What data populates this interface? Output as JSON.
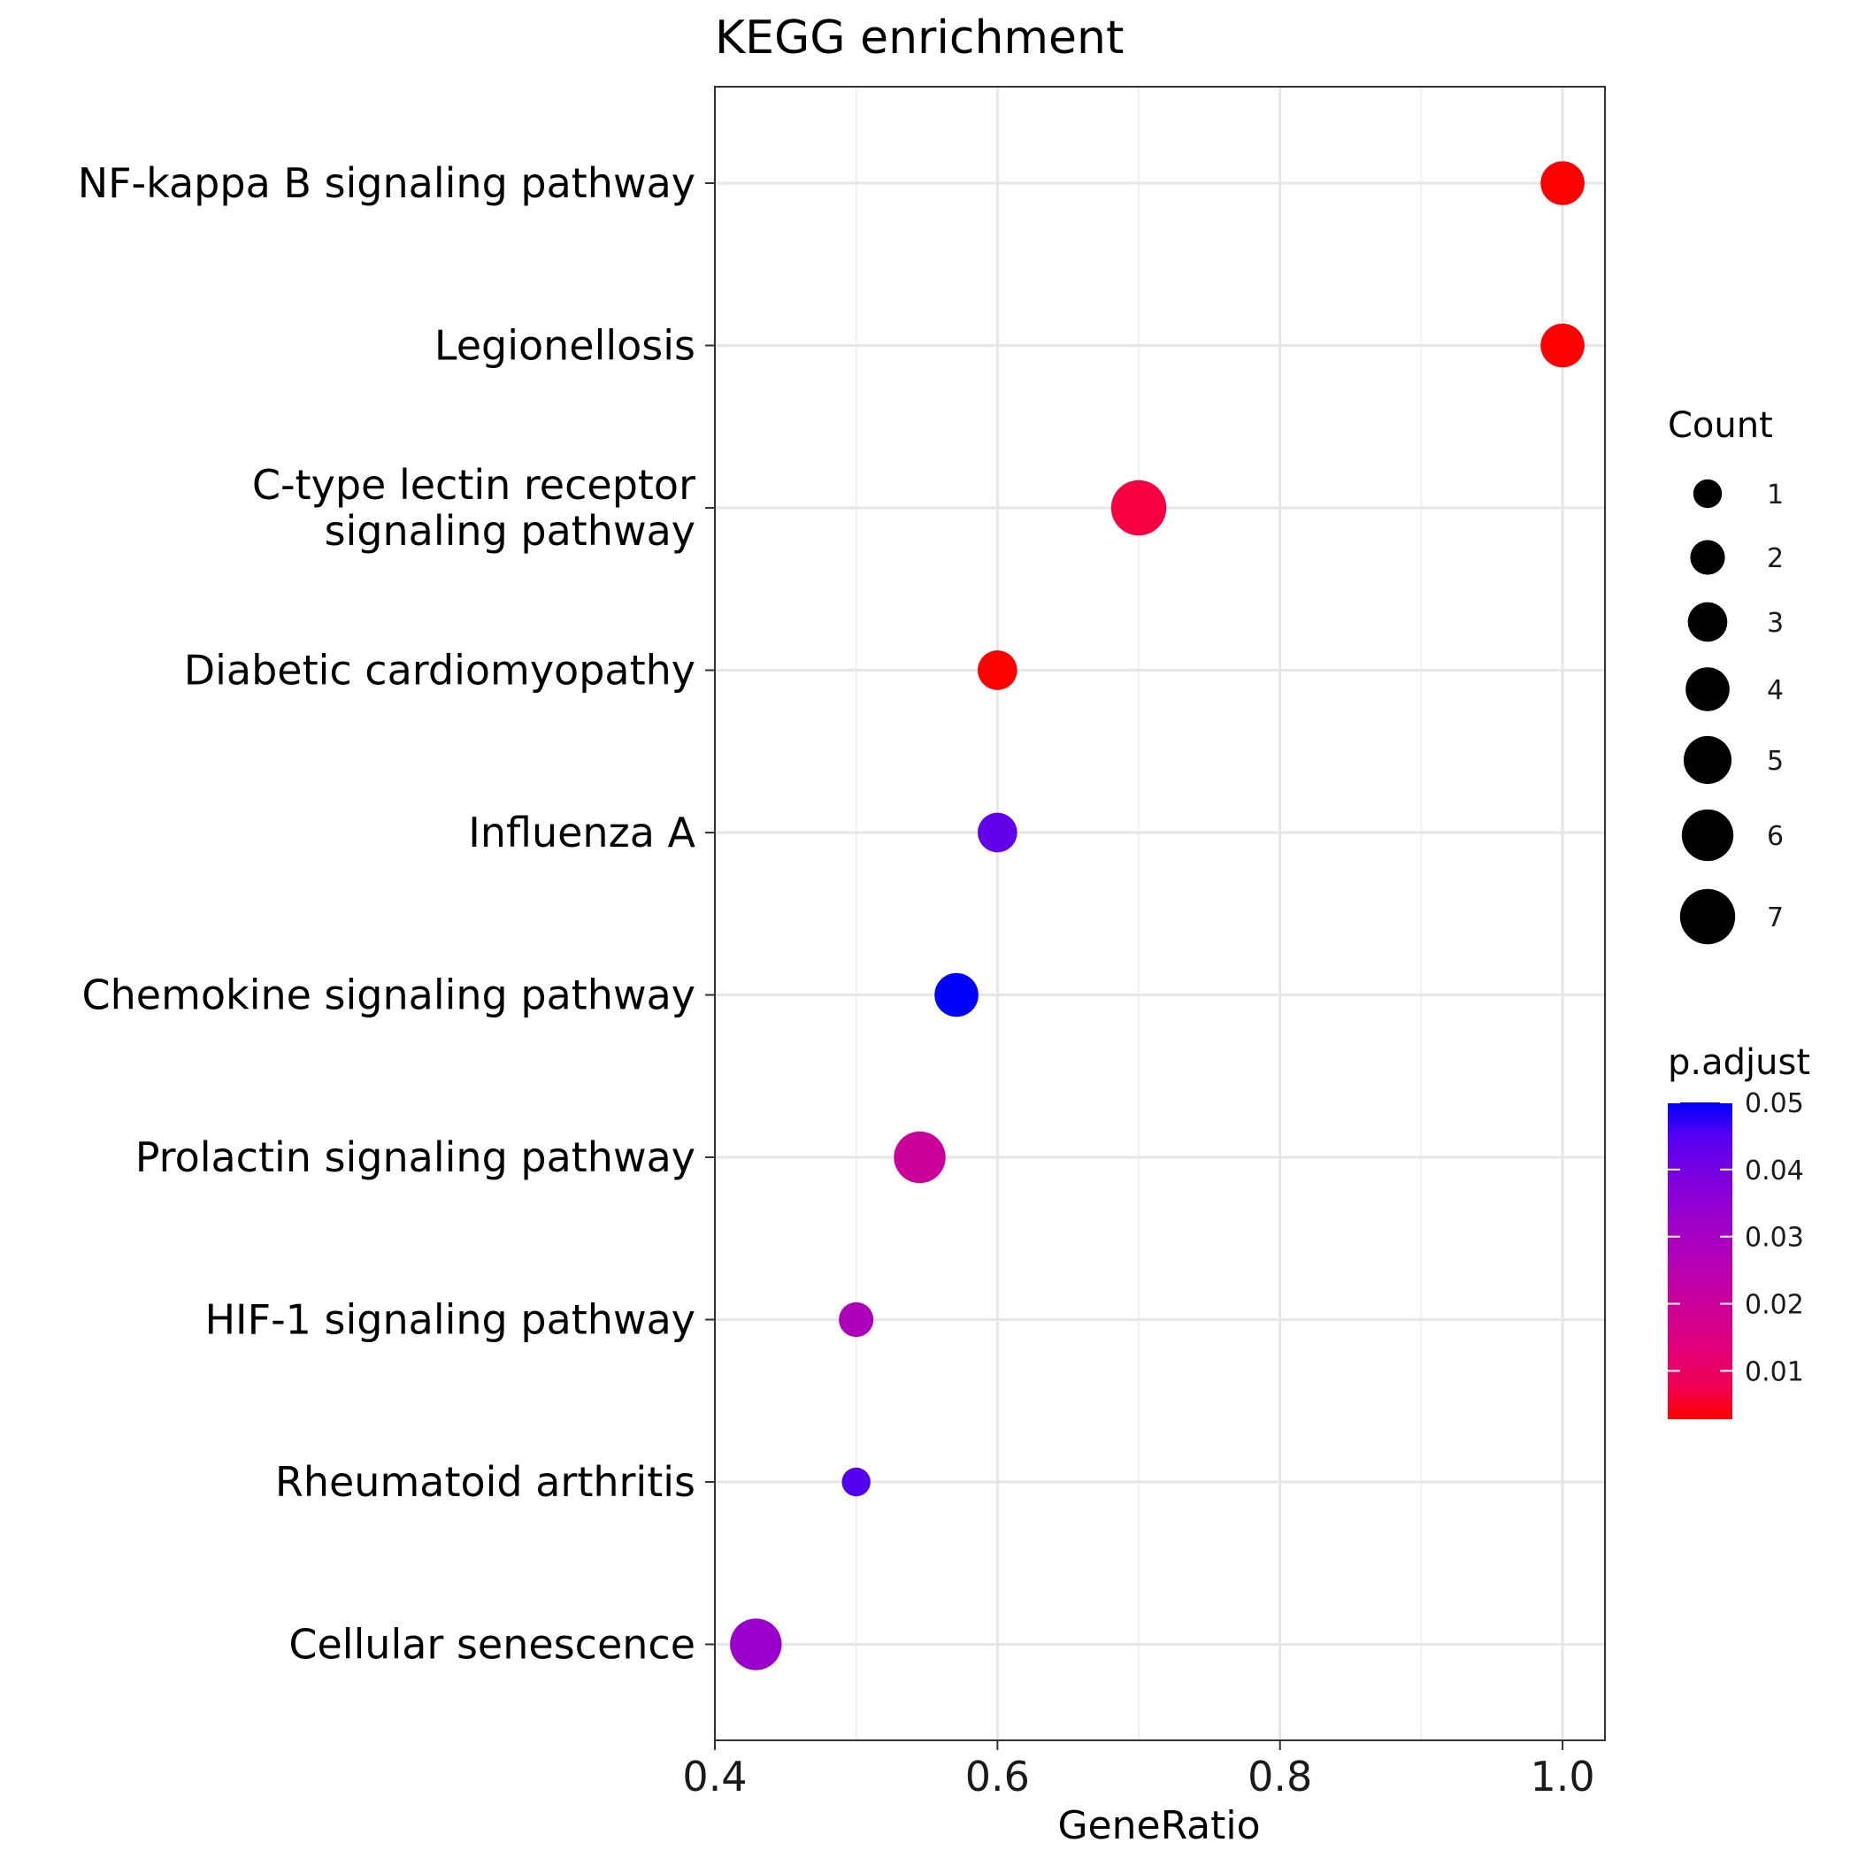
{
  "chart_data": {
    "type": "scatter",
    "title": "KEGG enrichment",
    "xlabel": "GeneRatio",
    "ylabel": "",
    "xlim": [
      0.4,
      1.03
    ],
    "x_ticks": [
      0.4,
      0.6,
      0.8,
      1.0
    ],
    "x_tick_labels": [
      "0.4",
      "0.6",
      "0.8",
      "1.0"
    ],
    "grid": true,
    "points": [
      {
        "label": "NF-kappa B signaling pathway",
        "label_lines": [
          "NF-kappa B signaling pathway"
        ],
        "gene_ratio": 1.0,
        "count": 4,
        "p_adjust": 0.001
      },
      {
        "label": "Legionellosis",
        "label_lines": [
          "Legionellosis"
        ],
        "gene_ratio": 1.0,
        "count": 4,
        "p_adjust": 0.001
      },
      {
        "label": "C-type lectin receptor signaling pathway",
        "label_lines": [
          "C-type lectin receptor",
          "signaling pathway"
        ],
        "gene_ratio": 0.7,
        "count": 7,
        "p_adjust": 0.006
      },
      {
        "label": "Diabetic cardiomyopathy",
        "label_lines": [
          "Diabetic cardiomyopathy"
        ],
        "gene_ratio": 0.6,
        "count": 3,
        "p_adjust": 0.001
      },
      {
        "label": "Influenza A",
        "label_lines": [
          "Influenza A"
        ],
        "gene_ratio": 0.6,
        "count": 3,
        "p_adjust": 0.043
      },
      {
        "label": "Chemokine signaling pathway",
        "label_lines": [
          "Chemokine signaling pathway"
        ],
        "gene_ratio": 0.571,
        "count": 4,
        "p_adjust": 0.05
      },
      {
        "label": "Prolactin signaling pathway",
        "label_lines": [
          "Prolactin signaling pathway"
        ],
        "gene_ratio": 0.545,
        "count": 6,
        "p_adjust": 0.02
      },
      {
        "label": "HIF-1 signaling pathway",
        "label_lines": [
          "HIF-1 signaling pathway"
        ],
        "gene_ratio": 0.5,
        "count": 2,
        "p_adjust": 0.028
      },
      {
        "label": "Rheumatoid arthritis",
        "label_lines": [
          "Rheumatoid arthritis"
        ],
        "gene_ratio": 0.5,
        "count": 1,
        "p_adjust": 0.045
      },
      {
        "label": "Cellular senescence",
        "label_lines": [
          "Cellular senescence"
        ],
        "gene_ratio": 0.429,
        "count": 6,
        "p_adjust": 0.033
      }
    ],
    "legend_size": {
      "title": "Count",
      "values": [
        1,
        2,
        3,
        4,
        5,
        6,
        7
      ],
      "labels": [
        "1",
        "2",
        "3",
        "4",
        "5",
        "6",
        "7"
      ]
    },
    "legend_color": {
      "title": "p.adjust",
      "range": [
        0.0028,
        0.05
      ],
      "ticks": [
        0.05,
        0.04,
        0.03,
        0.02,
        0.01
      ],
      "tick_labels": [
        "0.05",
        "0.04",
        "0.03",
        "0.02",
        "0.01"
      ],
      "low_color": "#ff0000",
      "high_color": "#0000ff"
    },
    "legend_placement": "right"
  }
}
